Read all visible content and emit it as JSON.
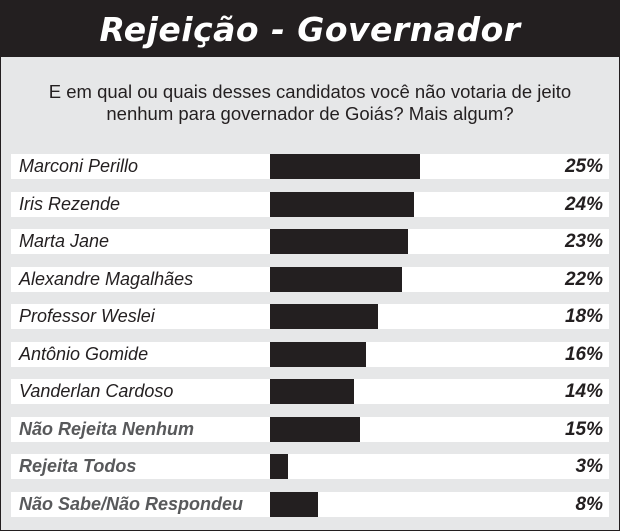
{
  "header": {
    "title": "Rejeição - Governador"
  },
  "question": "E em qual ou quais desses candidatos você não votaria de jeito nenhum para governador de Goiás? Mais algum?",
  "colors": {
    "background": "#e6e7e8",
    "bar": "#231f20",
    "header": "#231f20",
    "secondary_label": "#58595b"
  },
  "chart_data": {
    "type": "bar",
    "orientation": "horizontal",
    "title": "Rejeição - Governador",
    "subtitle": "E em qual ou quais desses candidatos você não votaria de jeito nenhum para governador de Goiás? Mais algum?",
    "unit": "%",
    "xlim": [
      0,
      25
    ],
    "grid": false,
    "categories": [
      "Marconi Perillo",
      "Iris Rezende",
      "Marta Jane",
      "Alexandre Magalhães",
      "Professor Weslei",
      "Antônio Gomide",
      "Vanderlan Cardoso",
      "Não Rejeita Nenhum",
      "Rejeita Todos",
      "Não Sabe/Não Respondeu"
    ],
    "values": [
      25,
      24,
      23,
      22,
      18,
      16,
      14,
      15,
      3,
      8
    ],
    "labels": [
      "25%",
      "24%",
      "23%",
      "22%",
      "18%",
      "16%",
      "14%",
      "15%",
      "3%",
      "8%"
    ],
    "group": [
      "candidate",
      "candidate",
      "candidate",
      "candidate",
      "candidate",
      "candidate",
      "candidate",
      "other",
      "other",
      "other"
    ]
  }
}
